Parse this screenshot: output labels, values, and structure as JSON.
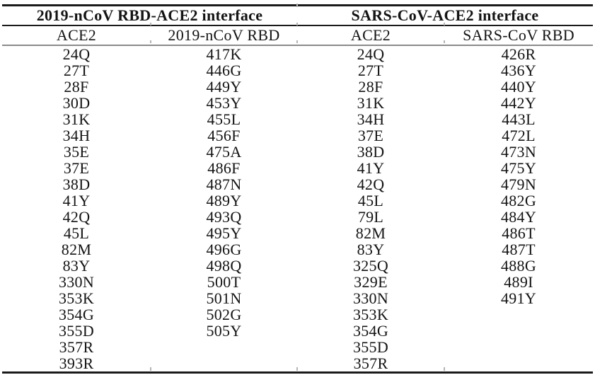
{
  "table": {
    "group_headers": [
      "2019-nCoV RBD-ACE2 interface",
      "SARS-CoV-ACE2 interface"
    ],
    "column_headers": [
      "ACE2",
      "2019-nCoV RBD",
      "ACE2",
      "SARS-CoV RBD"
    ],
    "columns": [
      {
        "key": "ncov-ace2",
        "values": [
          "24Q",
          "27T",
          "28F",
          "30D",
          "31K",
          "34H",
          "35E",
          "37E",
          "38D",
          "41Y",
          "42Q",
          "45L",
          "82M",
          "83Y",
          "330N",
          "353K",
          "354G",
          "355D",
          "357R",
          "393R"
        ]
      },
      {
        "key": "ncov-rbd",
        "values": [
          "417K",
          "446G",
          "449Y",
          "453Y",
          "455L",
          "456F",
          "475A",
          "486F",
          "487N",
          "489Y",
          "493Q",
          "495Y",
          "496G",
          "498Q",
          "500T",
          "501N",
          "502G",
          "505Y"
        ]
      },
      {
        "key": "sars-ace2",
        "values": [
          "24Q",
          "27T",
          "28F",
          "31K",
          "34H",
          "37E",
          "38D",
          "41Y",
          "42Q",
          "45L",
          "79L",
          "82M",
          "83Y",
          "325Q",
          "329E",
          "330N",
          "353K",
          "354G",
          "355D",
          "357R"
        ]
      },
      {
        "key": "sars-rbd",
        "values": [
          "426R",
          "436Y",
          "440Y",
          "442Y",
          "443L",
          "472L",
          "473N",
          "475Y",
          "479N",
          "482G",
          "484Y",
          "486T",
          "487T",
          "488G",
          "489I",
          "491Y"
        ]
      }
    ],
    "colors": {
      "rule_black": "#1a1a1a",
      "rule_gray": "#8a8a8a",
      "tick_gray": "#b5b5b5",
      "text": "#141414",
      "background": "#ffffff"
    }
  }
}
